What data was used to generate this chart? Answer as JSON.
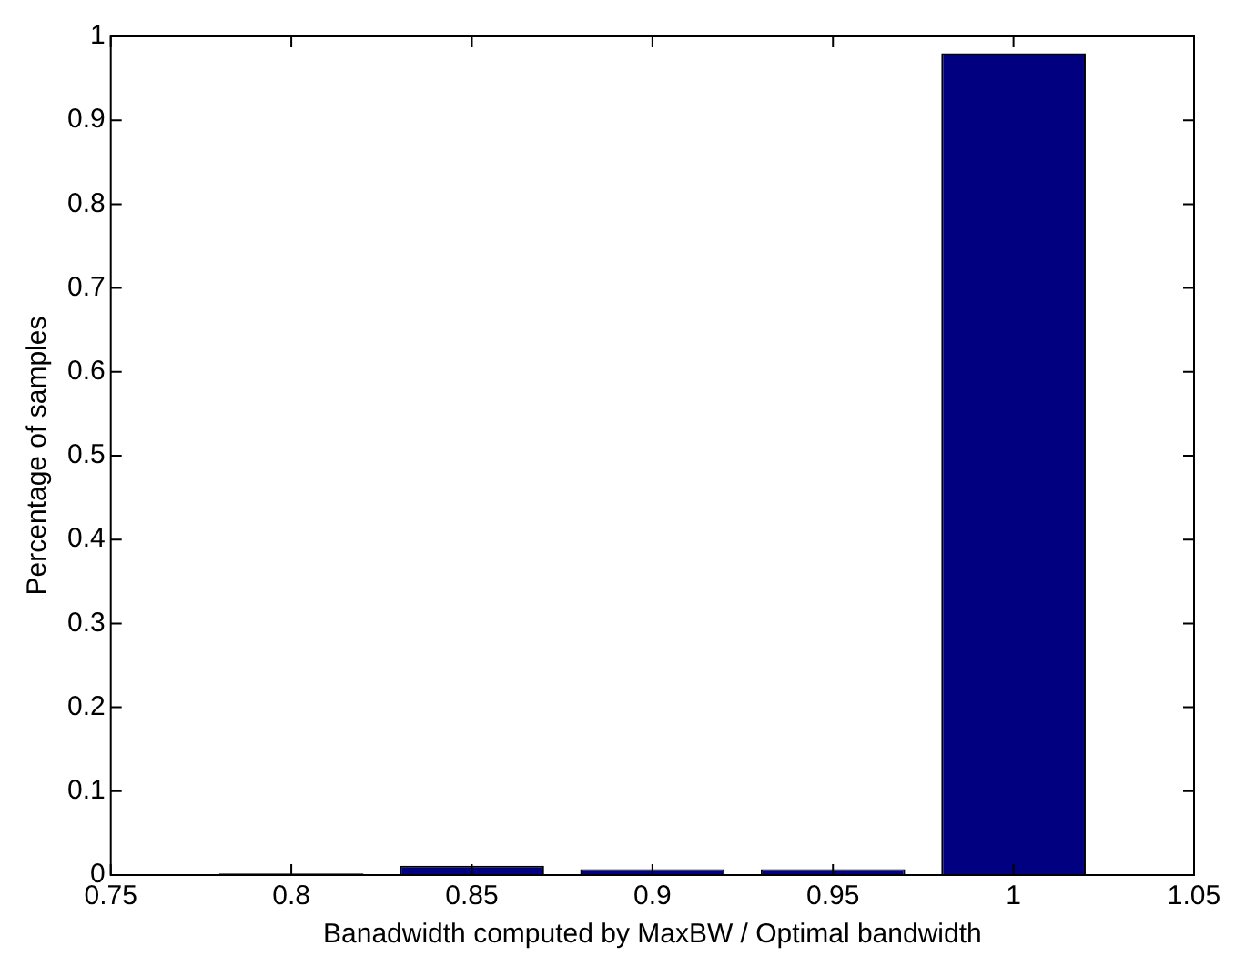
{
  "chart_data": {
    "type": "bar",
    "xlabel": "Banadwidth computed by MaxBW / Optimal bandwidth",
    "ylabel": "Percentage of samples",
    "x": [
      0.8,
      0.85,
      0.9,
      0.95,
      1
    ],
    "values": [
      0.002,
      0.011,
      0.007,
      0.007,
      0.98
    ],
    "color": "#000080",
    "xlim": [
      0.75,
      1.05
    ],
    "xticks": [
      0.75,
      0.8,
      0.85,
      0.9,
      0.95,
      1,
      1.05
    ],
    "ylim": [
      0,
      1
    ],
    "yticks": [
      0,
      0.1,
      0.2,
      0.3,
      0.4,
      0.5,
      0.6,
      0.7,
      0.8,
      0.9,
      1
    ],
    "grid": false,
    "legend": false
  }
}
